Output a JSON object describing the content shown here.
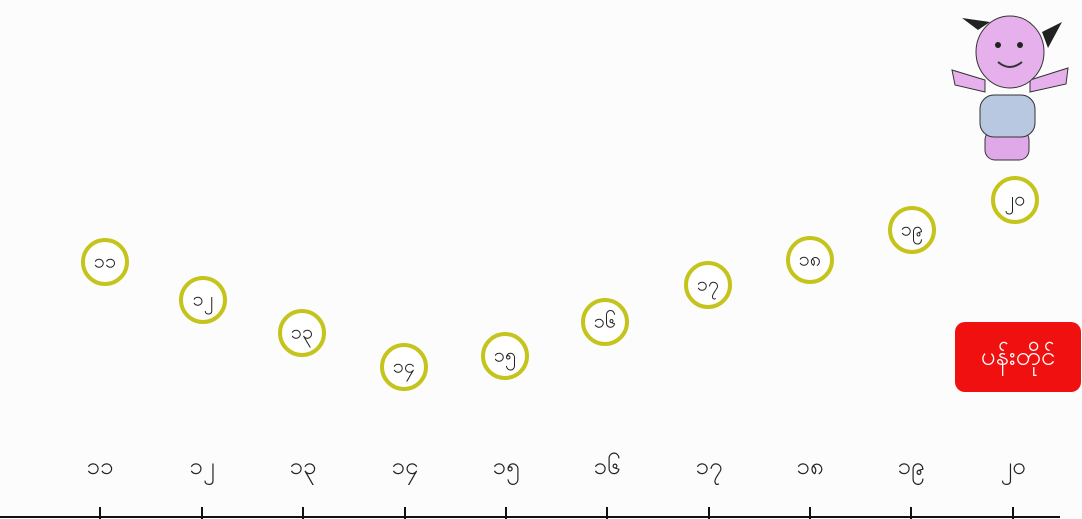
{
  "bubbles": [
    "၁၁",
    "၁၂",
    "၁၃",
    "၁၄",
    "၁၅",
    "၁၆",
    "၁၇",
    "၁၈",
    "၁၉",
    "၂၀"
  ],
  "number_line": [
    "၁၁",
    "၁၂",
    "၁၃",
    "၁၄",
    "၁၅",
    "၁၆",
    "၁၇",
    "၁၈",
    "၁၉",
    "၂၀"
  ],
  "goal_button": "ပန်းတိုင်"
}
